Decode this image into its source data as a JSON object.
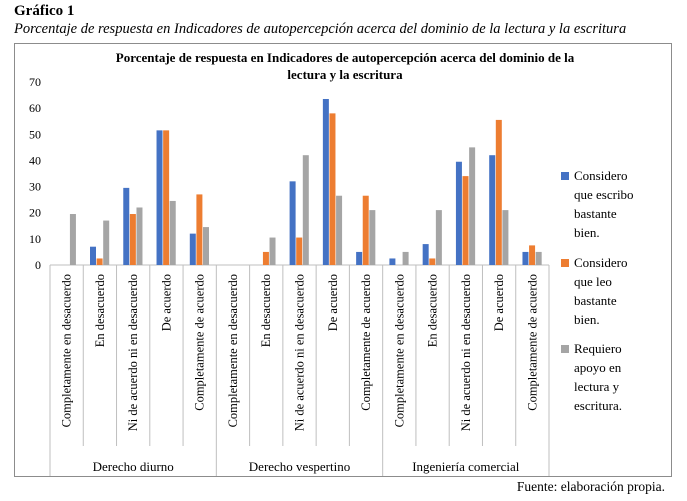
{
  "figure": {
    "label": "Gráfico 1",
    "caption": "Porcentaje de respuesta en Indicadores de autopercepción acerca del dominio de la lectura y la escritura",
    "source": "Fuente: elaboración propia."
  },
  "chart_data": {
    "type": "bar",
    "title_line1": "Porcentaje de respuesta en Indicadores de autopercepción acerca del dominio de la",
    "title_line2": "lectura y la escritura",
    "ylim": [
      0,
      70
    ],
    "yticks": [
      0,
      10,
      20,
      30,
      40,
      50,
      60,
      70
    ],
    "grid": false,
    "legend_position": "right",
    "groups": [
      {
        "name": "Derecho diurno",
        "categories": [
          "Completamente en desacuerdo",
          "En desacuerdo",
          "Ni de acuerdo ni en desacuerdo",
          "De acuerdo",
          "Completamente de acuerdo"
        ]
      },
      {
        "name": "Derecho vespertino",
        "categories": [
          "Completamente en desacuerdo",
          "En desacuerdo",
          "Ni de acuerdo ni en desacuerdo",
          "De acuerdo",
          "Completamente de acuerdo"
        ]
      },
      {
        "name": "Ingeniería comercial",
        "categories": [
          "Completamente en desacuerdo",
          "En desacuerdo",
          "Ni de acuerdo ni en desacuerdo",
          "De acuerdo",
          "Completamente de acuerdo"
        ]
      }
    ],
    "series": [
      {
        "name": "Considero que escribo bastante bien.",
        "color": "#4472c4",
        "values": [
          0,
          7,
          29.5,
          51.5,
          12,
          0,
          0,
          32,
          63.5,
          5,
          2.5,
          8,
          39.5,
          42,
          5
        ]
      },
      {
        "name": "Considero que leo bastante bien.",
        "color": "#ed7d31",
        "values": [
          0,
          2.5,
          19.5,
          51.5,
          27,
          0,
          5,
          10.5,
          58,
          26.5,
          0,
          2.5,
          34,
          55.5,
          7.5
        ]
      },
      {
        "name": "Requiero apoyo en lectura y escritura.",
        "color": "#a5a5a5",
        "values": [
          19.5,
          17,
          22,
          24.5,
          14.5,
          0,
          10.5,
          42,
          26.5,
          21,
          5,
          21,
          45,
          21,
          5
        ]
      }
    ]
  }
}
